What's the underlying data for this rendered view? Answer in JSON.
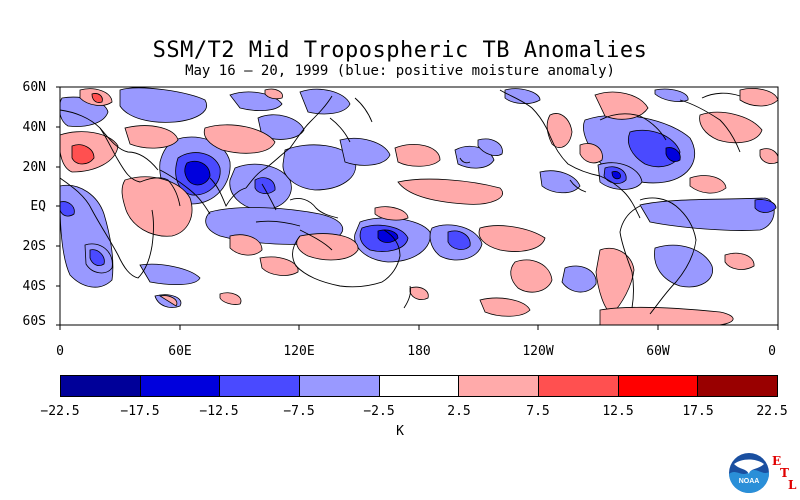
{
  "title": "SSM/T2 Mid Tropospheric TB Anomalies",
  "subtitle": "May 16 – 20, 1999 (blue: positive moisture anomaly)",
  "map": {
    "lat_labels": [
      "60N",
      "40N",
      "20N",
      "EQ",
      "20S",
      "40S",
      "60S"
    ],
    "lon_labels": [
      "0",
      "60E",
      "120E",
      "180",
      "120W",
      "60W",
      "0"
    ]
  },
  "legend": {
    "unit": "K",
    "levels": [
      "−22.5",
      "−17.5",
      "−12.5",
      "−7.5",
      "−2.5",
      "2.5",
      "7.5",
      "12.5",
      "17.5",
      "22.5"
    ],
    "colors": [
      "#000099",
      "#0000dd",
      "#4a4aff",
      "#9999ff",
      "#ffffff",
      "#ffaaaa",
      "#ff5050",
      "#ff0000",
      "#990000"
    ]
  },
  "logo": {
    "name": "NOAA",
    "letters": [
      "E",
      "T",
      "L"
    ]
  }
}
